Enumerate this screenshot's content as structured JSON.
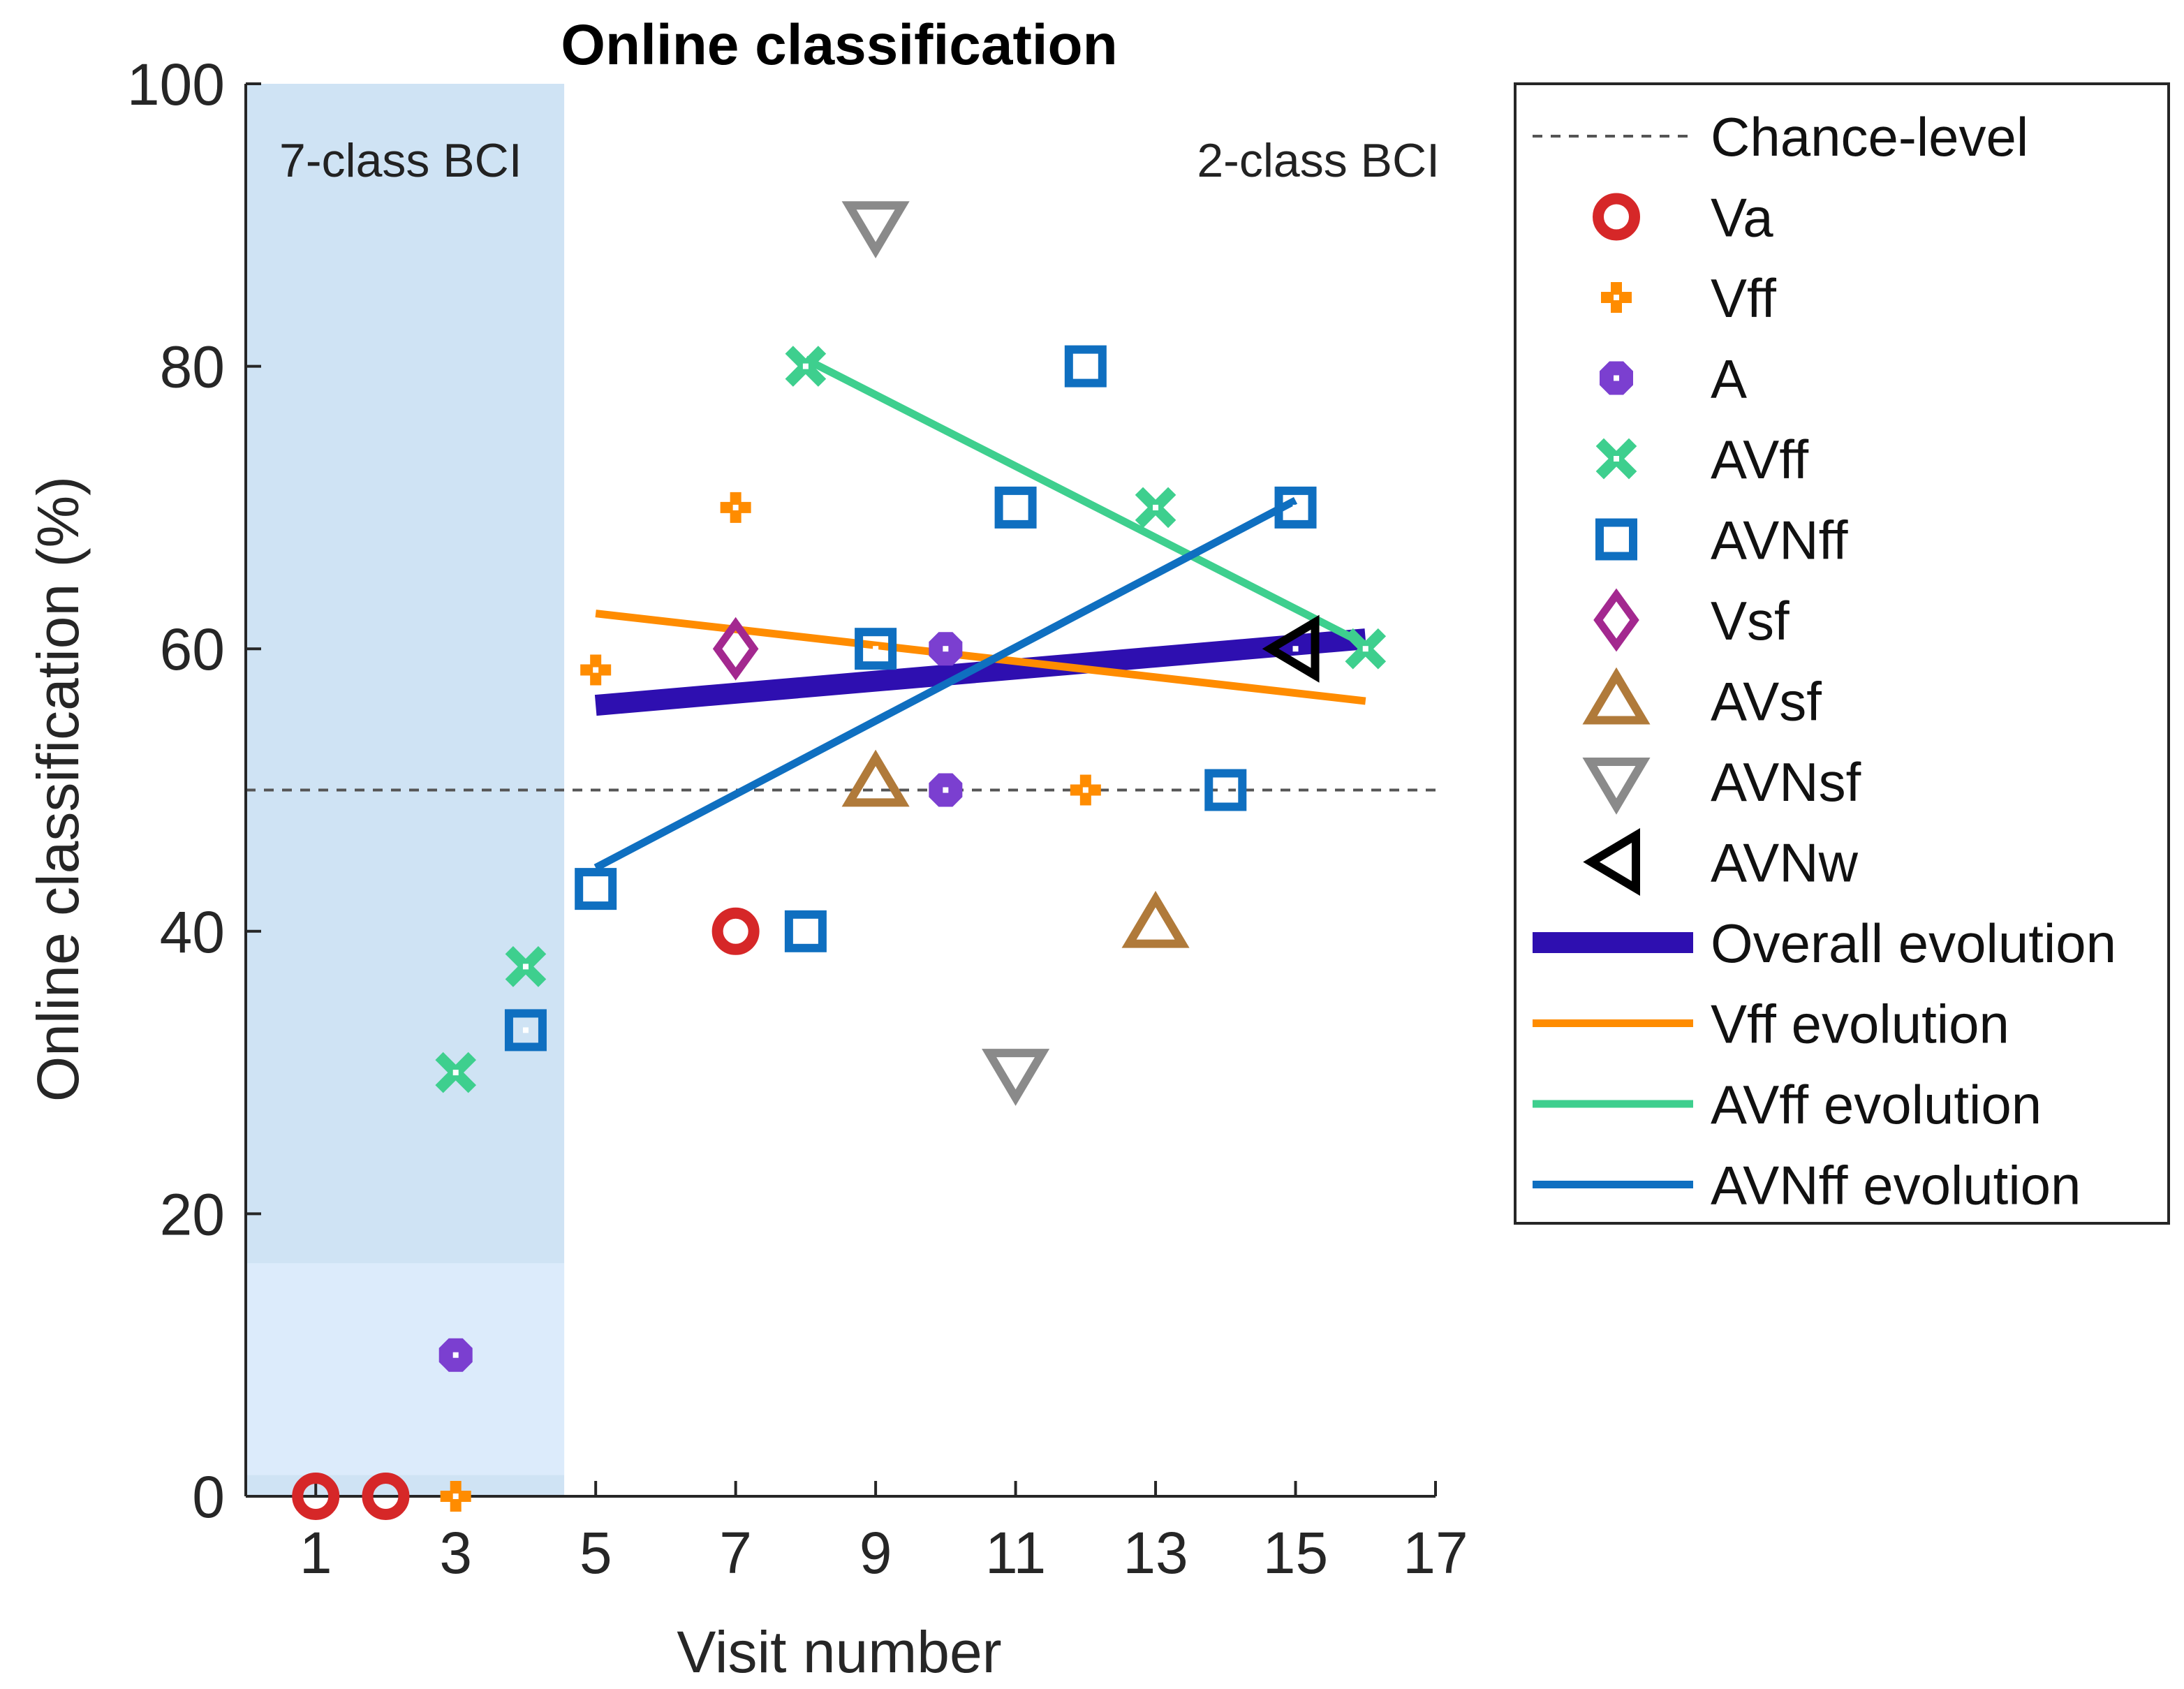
{
  "chart_data": {
    "type": "scatter",
    "title": "Online classification",
    "xlabel": "Visit number",
    "ylabel": "Online classification (%)",
    "xlim": [
      0,
      17
    ],
    "ylim": [
      0,
      100
    ],
    "xticks": [
      1,
      3,
      5,
      7,
      9,
      11,
      13,
      15,
      17
    ],
    "yticks": [
      0,
      20,
      40,
      60,
      80,
      100
    ],
    "shaded_region": {
      "x_from": 0,
      "x_to": 4.55,
      "label": "7-class BCI",
      "color": "#cfe3f4"
    },
    "unshaded_region_label": "2-class BCI",
    "chance_level": 50,
    "legend_position": "outside-right",
    "series": [
      {
        "name": "Va",
        "marker": "ring",
        "color": "#d62728",
        "points": [
          [
            1,
            0
          ],
          [
            2,
            0
          ],
          [
            7,
            40
          ]
        ]
      },
      {
        "name": "Vff",
        "marker": "plus",
        "color": "#ff8c00",
        "points": [
          [
            3,
            0
          ],
          [
            5,
            58.5
          ],
          [
            7,
            70
          ],
          [
            12,
            50
          ]
        ]
      },
      {
        "name": "A",
        "marker": "octagon",
        "color": "#7b3fd0",
        "points": [
          [
            3,
            10
          ],
          [
            10,
            60
          ],
          [
            10,
            50
          ]
        ]
      },
      {
        "name": "AVff",
        "marker": "x",
        "color": "#3ecf8e",
        "points": [
          [
            3,
            30
          ],
          [
            4,
            37.5
          ],
          [
            8,
            80
          ],
          [
            13,
            70
          ],
          [
            16,
            60
          ]
        ]
      },
      {
        "name": "AVNff",
        "marker": "square",
        "color": "#0f6fc0",
        "points": [
          [
            4,
            33
          ],
          [
            5,
            43
          ],
          [
            8,
            40
          ],
          [
            9,
            60
          ],
          [
            11,
            70
          ],
          [
            12,
            80
          ],
          [
            14,
            50
          ],
          [
            15,
            70
          ]
        ]
      },
      {
        "name": "Vsf",
        "marker": "diamond",
        "color": "#a3288f",
        "points": [
          [
            7,
            60
          ]
        ]
      },
      {
        "name": "AVsf",
        "marker": "triangle-up",
        "color": "#b07a3a",
        "points": [
          [
            9,
            50.5
          ],
          [
            13,
            40.5
          ]
        ]
      },
      {
        "name": "AVNsf",
        "marker": "triangle-down",
        "color": "#8a8a8a",
        "points": [
          [
            9,
            90
          ],
          [
            11,
            30
          ]
        ]
      },
      {
        "name": "AVNw",
        "marker": "triangle-left",
        "color": "#000000",
        "points": [
          [
            15,
            60
          ]
        ]
      }
    ],
    "lines": [
      {
        "name": "Overall evolution",
        "color": "#2e0fb0",
        "width": 30,
        "from": [
          5,
          56
        ],
        "to": [
          16,
          60.7
        ]
      },
      {
        "name": "Vff evolution",
        "color": "#ff8c00",
        "width": 11,
        "from": [
          5,
          62.5
        ],
        "to": [
          16,
          56.3
        ]
      },
      {
        "name": "AVff evolution",
        "color": "#3ecf8e",
        "width": 11,
        "from": [
          8,
          80.5
        ],
        "to": [
          16,
          60.3
        ]
      },
      {
        "name": "AVNff evolution",
        "color": "#0f6fc0",
        "width": 11,
        "from": [
          5,
          44.5
        ],
        "to": [
          15,
          70.5
        ]
      }
    ],
    "legend": [
      {
        "label": "Chance-level",
        "kind": "dashed",
        "color": "#555555"
      },
      {
        "label": "Va",
        "kind": "ring",
        "color": "#d62728"
      },
      {
        "label": "Vff",
        "kind": "plus",
        "color": "#ff8c00"
      },
      {
        "label": "A",
        "kind": "octagon",
        "color": "#7b3fd0"
      },
      {
        "label": "AVff",
        "kind": "x",
        "color": "#3ecf8e"
      },
      {
        "label": "AVNff",
        "kind": "square",
        "color": "#0f6fc0"
      },
      {
        "label": "Vsf",
        "kind": "diamond",
        "color": "#a3288f"
      },
      {
        "label": "AVsf",
        "kind": "triangle-up",
        "color": "#b07a3a"
      },
      {
        "label": "AVNsf",
        "kind": "triangle-down",
        "color": "#8a8a8a"
      },
      {
        "label": "AVNw",
        "kind": "triangle-left",
        "color": "#000000"
      },
      {
        "label": "Overall evolution",
        "kind": "thick-line",
        "color": "#2e0fb0"
      },
      {
        "label": "Vff evolution",
        "kind": "line",
        "color": "#ff8c00"
      },
      {
        "label": "AVff evolution",
        "kind": "line",
        "color": "#3ecf8e"
      },
      {
        "label": "AVNff evolution",
        "kind": "line",
        "color": "#0f6fc0"
      }
    ]
  }
}
